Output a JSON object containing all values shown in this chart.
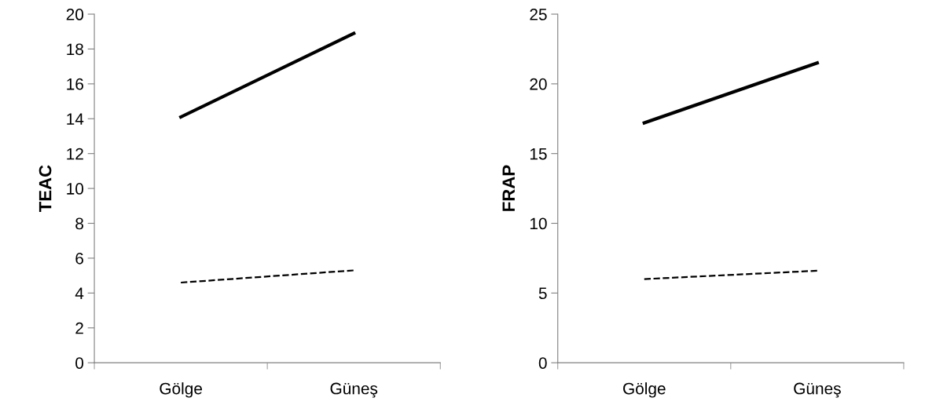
{
  "chart_data": [
    {
      "type": "line",
      "ylabel": "TEAC",
      "categories": [
        "Gölge",
        "Güneş"
      ],
      "ylim": [
        0,
        20
      ],
      "yticks": [
        0,
        2,
        4,
        6,
        8,
        10,
        12,
        14,
        16,
        18,
        20
      ],
      "grid": false,
      "marker": "none",
      "series": [
        {
          "color": "#000000",
          "line_style": "solid",
          "values": [
            14.1,
            18.9
          ]
        },
        {
          "color": "#000000",
          "line_style": "dashed",
          "values": [
            4.6,
            5.3
          ]
        }
      ]
    },
    {
      "type": "line",
      "ylabel": "FRAP",
      "categories": [
        "Gölge",
        "Güneş"
      ],
      "ylim": [
        0,
        25
      ],
      "yticks": [
        0,
        5,
        10,
        15,
        20,
        25
      ],
      "grid": false,
      "marker": "none",
      "series": [
        {
          "color": "#000000",
          "line_style": "solid",
          "values": [
            17.2,
            21.5
          ]
        },
        {
          "color": "#000000",
          "line_style": "dashed",
          "values": [
            6.0,
            6.6
          ]
        }
      ]
    }
  ]
}
